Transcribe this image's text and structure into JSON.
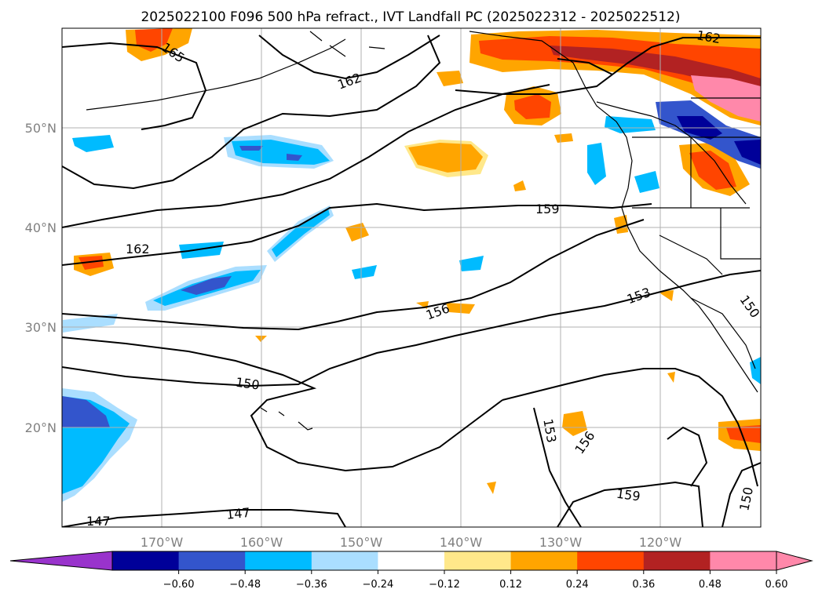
{
  "title": "2025022100 F096 500 hPa refract., IVT Landfall PC (2025022312 - 2025022512)",
  "map": {
    "lon_ticks": [
      "170°W",
      "160°W",
      "150°W",
      "140°W",
      "130°W",
      "120°W"
    ],
    "lat_ticks": [
      "50°N",
      "40°N",
      "30°N",
      "20°N"
    ]
  },
  "contour_labels": [
    "165",
    "162",
    "162",
    "162",
    "159",
    "159",
    "156",
    "156",
    "153",
    "153",
    "150",
    "150",
    "150",
    "147",
    "147"
  ],
  "colorbar": {
    "ticks": [
      "−0.60",
      "−0.48",
      "−0.36",
      "−0.24",
      "−0.12",
      "0.12",
      "0.24",
      "0.36",
      "0.48",
      "0.60"
    ],
    "colors": {
      "under": "#9933cc",
      "bins": [
        "#000099",
        "#3355cc",
        "#00bbff",
        "#aadeff",
        "#ffffff",
        "#ffe88a",
        "#ffa500",
        "#ff4500",
        "#b22222",
        "#ff88aa"
      ],
      "over": "#ff88aa"
    }
  },
  "colors": {
    "coast": "#000000",
    "grid": "#b0b0b0",
    "contour": "#000000"
  }
}
